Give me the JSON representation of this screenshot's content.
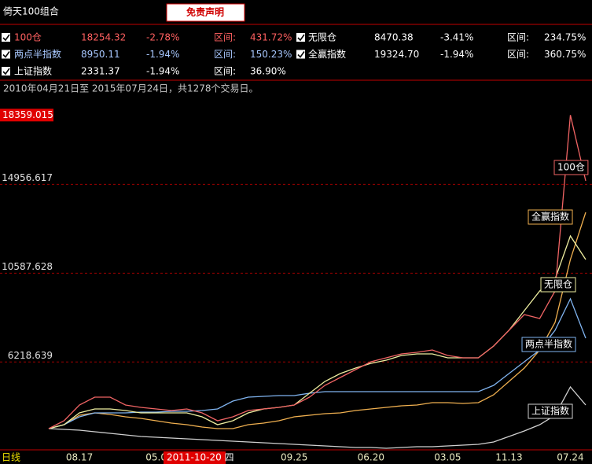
{
  "window_title": "倚天100组合",
  "disclaimer": "免责声明",
  "range_label": "区间:",
  "date_range": "2010年04月21日至 2015年07月24日，共1278个交易日。",
  "period_label": "日线",
  "cursor_label": "2011-10-20 四",
  "legend": [
    {
      "value": "18254.32",
      "change": "-2.78%",
      "range": "431.72%"
    },
    {
      "value": "8470.38",
      "change": "-3.41%",
      "range": "234.75%"
    },
    {
      "value": "8950.11",
      "change": "-1.94%",
      "range": "150.23%"
    },
    {
      "value": "19324.70",
      "change": "-1.94%",
      "range": "360.75%"
    },
    {
      "value": "2331.37",
      "change": "-1.94%",
      "range": "36.90%"
    }
  ],
  "chart_data": {
    "type": "line",
    "categories": [
      null,
      null,
      "08.17",
      null,
      null,
      null,
      null,
      "05.0",
      null,
      null,
      null,
      null,
      null,
      null,
      null,
      null,
      "09.25",
      null,
      null,
      null,
      null,
      "06.20",
      null,
      null,
      null,
      null,
      "03.05",
      null,
      null,
      null,
      "11.13",
      null,
      null,
      null,
      "07.24",
      null
    ],
    "ylim": [
      1900,
      19300
    ],
    "yticks": [
      6218.639,
      10587.628,
      14956.617
    ],
    "max_value": 18359.015,
    "grid": true,
    "series": [
      {
        "name": "100仓",
        "color": "#f06464",
        "label_color": "#ff6060",
        "values": [
          2944,
          3331,
          4104,
          4491,
          4491,
          4104,
          3988,
          3911,
          3834,
          3911,
          3717,
          3331,
          3524,
          3834,
          3911,
          3988,
          4104,
          4491,
          5071,
          5458,
          5844,
          6231,
          6424,
          6618,
          6695,
          6811,
          6540,
          6424,
          6424,
          7004,
          7778,
          8551,
          8358,
          9711,
          18359,
          15125
        ]
      },
      {
        "name": "无限仓",
        "color": "#eeeea0",
        "label_color": "#ffffff",
        "values": [
          2944,
          3137,
          3717,
          3911,
          3911,
          3834,
          3717,
          3717,
          3717,
          3717,
          3524,
          3137,
          3331,
          3717,
          3911,
          3988,
          4104,
          4684,
          5264,
          5651,
          5922,
          6154,
          6308,
          6540,
          6618,
          6618,
          6424,
          6424,
          6424,
          7004,
          7778,
          8745,
          9711,
          10291,
          12418,
          11258
        ]
      },
      {
        "name": "两点半指数",
        "color": "#80b4f0",
        "label_color": "#a8c8ff",
        "values": [
          2944,
          3137,
          3524,
          3717,
          3717,
          3717,
          3756,
          3756,
          3795,
          3795,
          3834,
          3911,
          4298,
          4491,
          4530,
          4568,
          4568,
          4684,
          4762,
          4762,
          4762,
          4762,
          4762,
          4762,
          4762,
          4762,
          4762,
          4762,
          4762,
          5071,
          5651,
          6231,
          6811,
          7778,
          9325,
          7391
        ]
      },
      {
        "name": "全赢指数",
        "color": "#f0b050",
        "label_color": "#ffffff",
        "values": [
          2944,
          3137,
          3601,
          3717,
          3640,
          3524,
          3447,
          3331,
          3215,
          3137,
          3021,
          2944,
          2944,
          3137,
          3215,
          3331,
          3524,
          3601,
          3679,
          3717,
          3834,
          3911,
          3988,
          4066,
          4104,
          4220,
          4220,
          4182,
          4220,
          4607,
          5264,
          5922,
          6811,
          8165,
          11258,
          13578
        ]
      },
      {
        "name": "上证指数",
        "color": "#d0d0d0",
        "label_color": "#ffffff",
        "values": [
          2944,
          2905,
          2867,
          2789,
          2712,
          2635,
          2557,
          2519,
          2480,
          2441,
          2403,
          2364,
          2325,
          2287,
          2248,
          2209,
          2171,
          2132,
          2093,
          2055,
          2016,
          2016,
          1977,
          2016,
          2055,
          2055,
          2093,
          2132,
          2171,
          2287,
          2557,
          2828,
          3137,
          3601,
          4994,
          4104
        ]
      }
    ]
  }
}
